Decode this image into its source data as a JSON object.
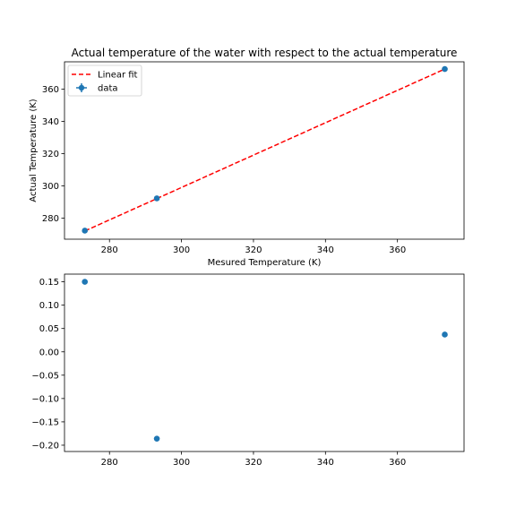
{
  "chart_data": [
    {
      "type": "scatter",
      "title": "Actual temperature of the water with respect to the actual temperature",
      "xlabel": "Mesured Temperature (K)",
      "ylabel": "Actual Temperature (K)",
      "xlim": [
        267.5,
        378.5
      ],
      "ylim": [
        267,
        377
      ],
      "xticks": [
        280,
        300,
        320,
        340,
        360
      ],
      "yticks": [
        280,
        300,
        320,
        340,
        360
      ],
      "grid": false,
      "legend_position": "top-left",
      "series": [
        {
          "name": "data",
          "kind": "errorbar-scatter",
          "color": "#1f77b4",
          "points": [
            {
              "x": 273.15,
              "y": 272.3
            },
            {
              "x": 293.15,
              "y": 292.3
            },
            {
              "x": 373.15,
              "y": 372.5
            }
          ]
        },
        {
          "name": "Linear fit",
          "kind": "line",
          "style": "dashed",
          "color": "#ff0000",
          "points": [
            {
              "x": 273.15,
              "y": 272.1
            },
            {
              "x": 373.15,
              "y": 372.5
            }
          ]
        }
      ],
      "legend": [
        {
          "label": "Linear fit",
          "kind": "line"
        },
        {
          "label": "data",
          "kind": "errorbar"
        }
      ]
    },
    {
      "type": "scatter",
      "title": "",
      "xlabel": "",
      "ylabel": "",
      "xlim": [
        267.5,
        378.5
      ],
      "ylim": [
        -0.2135,
        0.1665
      ],
      "xticks": [
        280,
        300,
        320,
        340,
        360
      ],
      "yticks": [
        -0.2,
        -0.15,
        -0.1,
        -0.05,
        0.0,
        0.05,
        0.1,
        0.15
      ],
      "ytick_labels": [
        "−0.20",
        "−0.15",
        "−0.10",
        "−0.05",
        "0.00",
        "0.05",
        "0.10",
        "0.15"
      ],
      "grid": false,
      "series": [
        {
          "color": "#1f77b4",
          "points": [
            {
              "x": 273.15,
              "y": 0.15
            },
            {
              "x": 293.15,
              "y": -0.186
            },
            {
              "x": 373.15,
              "y": 0.037
            }
          ]
        }
      ]
    }
  ]
}
